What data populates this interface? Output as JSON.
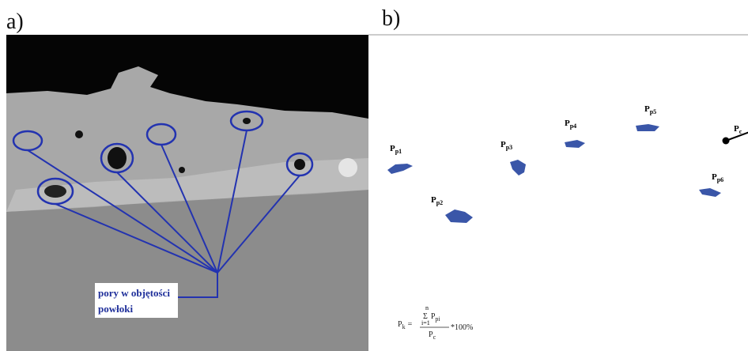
{
  "panels": [
    {
      "label": "a)",
      "annotation": [
        "pory w objętości",
        "powłoki"
      ]
    },
    {
      "label": "b)",
      "pores": [
        {
          "symbol": "P",
          "subscript": "p1"
        },
        {
          "symbol": "P",
          "subscript": "p2"
        },
        {
          "symbol": "P",
          "subscript": "p3"
        },
        {
          "symbol": "P",
          "subscript": "p4"
        },
        {
          "symbol": "P",
          "subscript": "p5"
        },
        {
          "symbol": "P",
          "subscript": "p6"
        }
      ],
      "reference": {
        "symbol": "P",
        "subscript": "c"
      },
      "formula": {
        "lhs": "P",
        "lhs_sub": "k",
        "eq": "=",
        "sum_top": "n",
        "sum": "Σ",
        "sum_bottom": "i=1",
        "num": "P",
        "num_sub": "pi",
        "den": "P",
        "den_sub": "c",
        "tail": "*100%"
      }
    }
  ]
}
